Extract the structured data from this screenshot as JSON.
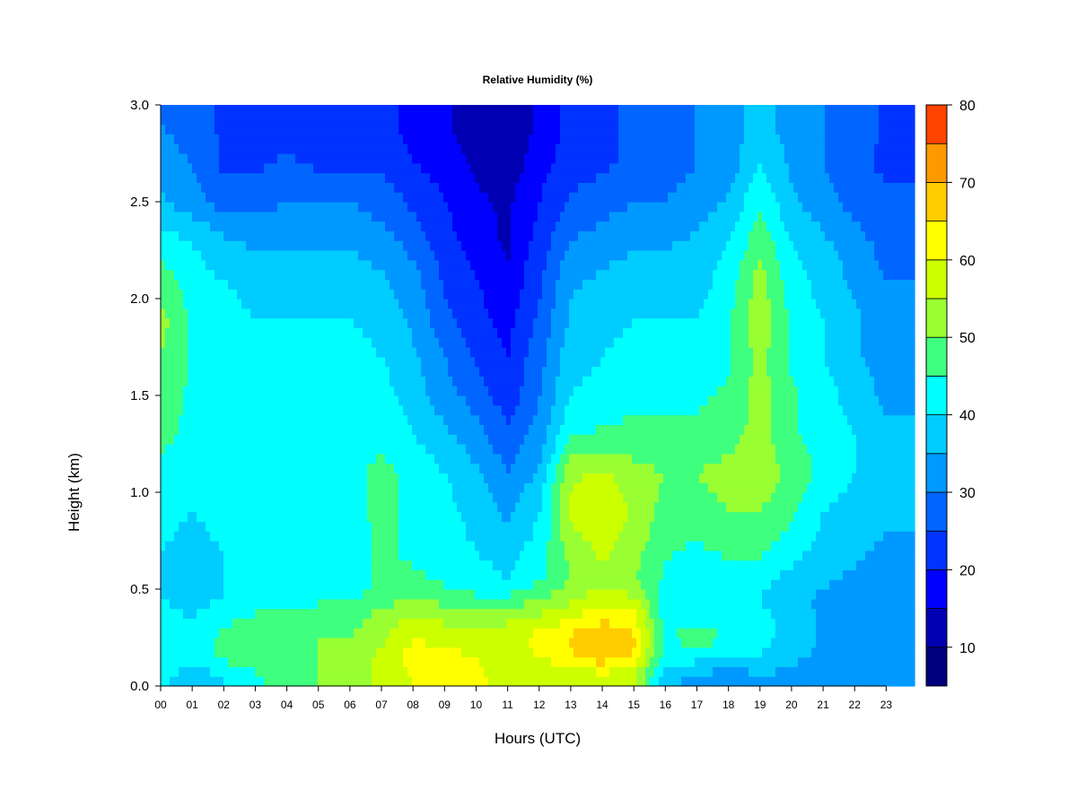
{
  "chart_data": {
    "type": "heatmap",
    "title": "Relative Humidity (%)",
    "xlabel": "Hours (UTC)",
    "ylabel": "Height (km)",
    "x": [
      "00",
      "01",
      "02",
      "03",
      "04",
      "05",
      "06",
      "07",
      "08",
      "09",
      "10",
      "11",
      "12",
      "13",
      "14",
      "15",
      "16",
      "17",
      "18",
      "19",
      "20",
      "21",
      "22",
      "23"
    ],
    "xlim": [
      0,
      23.9
    ],
    "y_ticks": [
      "0.0",
      "0.5",
      "1.0",
      "1.5",
      "2.0",
      "2.5",
      "3.0"
    ],
    "y": [
      0.0,
      0.5,
      1.0,
      1.5,
      2.0,
      2.5,
      3.0
    ],
    "ylim": [
      0.0,
      3.0
    ],
    "y_grid": [
      0.05,
      0.15,
      0.25,
      0.35,
      0.45,
      0.55,
      0.7,
      0.9,
      1.1,
      1.3,
      1.5,
      1.7,
      1.9,
      2.1,
      2.3,
      2.5,
      2.7,
      2.9
    ],
    "values": [
      [
        42,
        36,
        40,
        44,
        48,
        50,
        52,
        56,
        60,
        60,
        62,
        56,
        56,
        56,
        58,
        56,
        36,
        34,
        32,
        34,
        34,
        32,
        30,
        30
      ],
      [
        44,
        42,
        46,
        48,
        48,
        50,
        52,
        56,
        62,
        62,
        60,
        56,
        60,
        64,
        68,
        64,
        42,
        42,
        40,
        40,
        36,
        34,
        32,
        30
      ],
      [
        44,
        42,
        46,
        48,
        48,
        50,
        50,
        54,
        60,
        58,
        56,
        58,
        62,
        66,
        70,
        66,
        44,
        48,
        44,
        42,
        38,
        34,
        32,
        30
      ],
      [
        42,
        40,
        44,
        46,
        46,
        48,
        48,
        52,
        56,
        54,
        52,
        54,
        56,
        60,
        64,
        62,
        42,
        44,
        42,
        42,
        38,
        34,
        32,
        30
      ],
      [
        40,
        38,
        40,
        42,
        42,
        44,
        44,
        48,
        50,
        48,
        46,
        46,
        50,
        54,
        58,
        56,
        42,
        40,
        40,
        40,
        36,
        34,
        32,
        30
      ],
      [
        40,
        38,
        40,
        40,
        40,
        40,
        42,
        46,
        46,
        44,
        42,
        40,
        44,
        50,
        54,
        50,
        44,
        40,
        42,
        42,
        38,
        36,
        34,
        32
      ],
      [
        40,
        38,
        40,
        40,
        40,
        42,
        42,
        46,
        44,
        42,
        40,
        38,
        42,
        52,
        56,
        52,
        46,
        44,
        46,
        46,
        42,
        38,
        36,
        34
      ],
      [
        42,
        40,
        42,
        42,
        42,
        42,
        44,
        46,
        44,
        42,
        38,
        34,
        40,
        56,
        60,
        54,
        48,
        48,
        50,
        50,
        46,
        40,
        38,
        36
      ],
      [
        44,
        42,
        44,
        44,
        44,
        44,
        44,
        46,
        44,
        40,
        36,
        30,
        36,
        54,
        56,
        52,
        50,
        50,
        52,
        54,
        48,
        44,
        40,
        38
      ],
      [
        46,
        44,
        44,
        44,
        44,
        44,
        44,
        44,
        40,
        36,
        32,
        26,
        32,
        44,
        46,
        46,
        46,
        46,
        48,
        52,
        46,
        42,
        40,
        36
      ],
      [
        48,
        44,
        44,
        42,
        42,
        42,
        42,
        42,
        38,
        32,
        28,
        22,
        30,
        40,
        42,
        44,
        44,
        44,
        46,
        52,
        46,
        42,
        38,
        34
      ],
      [
        50,
        44,
        42,
        42,
        42,
        42,
        42,
        40,
        36,
        30,
        24,
        20,
        28,
        38,
        40,
        42,
        42,
        42,
        44,
        52,
        44,
        40,
        36,
        32
      ],
      [
        52,
        44,
        42,
        40,
        40,
        40,
        40,
        38,
        34,
        26,
        22,
        18,
        26,
        36,
        38,
        40,
        40,
        40,
        44,
        54,
        44,
        40,
        36,
        32
      ],
      [
        48,
        42,
        40,
        38,
        38,
        38,
        38,
        36,
        32,
        24,
        20,
        16,
        24,
        34,
        36,
        38,
        38,
        38,
        42,
        52,
        42,
        38,
        34,
        30
      ],
      [
        42,
        40,
        36,
        34,
        34,
        34,
        34,
        32,
        28,
        22,
        18,
        14,
        22,
        30,
        32,
        34,
        34,
        36,
        40,
        48,
        40,
        36,
        32,
        28
      ],
      [
        36,
        32,
        28,
        28,
        30,
        30,
        30,
        28,
        24,
        20,
        16,
        14,
        20,
        26,
        28,
        30,
        30,
        32,
        36,
        44,
        36,
        32,
        28,
        26
      ],
      [
        32,
        30,
        24,
        24,
        26,
        24,
        24,
        24,
        20,
        18,
        14,
        12,
        18,
        22,
        24,
        26,
        28,
        30,
        32,
        40,
        34,
        30,
        26,
        24
      ],
      [
        30,
        28,
        24,
        22,
        22,
        24,
        24,
        22,
        18,
        16,
        12,
        10,
        16,
        22,
        24,
        26,
        28,
        30,
        32,
        38,
        32,
        30,
        28,
        24
      ]
    ],
    "colorbar": {
      "min": 5,
      "max": 80,
      "step": 5,
      "ticks": [
        "10",
        "20",
        "30",
        "40",
        "50",
        "60",
        "70",
        "80"
      ],
      "tick_values": [
        10,
        20,
        30,
        40,
        50,
        60,
        70,
        80
      ],
      "colors": [
        "#00007f",
        "#0000b2",
        "#0000ff",
        "#0033ff",
        "#0066ff",
        "#0099ff",
        "#00ccff",
        "#00ffff",
        "#3fff7f",
        "#99ff33",
        "#ccff00",
        "#ffff00",
        "#ffcc00",
        "#ff9900",
        "#ff4400",
        "#ff1a00",
        "#cc0000",
        "#880000"
      ]
    },
    "grid": false
  }
}
